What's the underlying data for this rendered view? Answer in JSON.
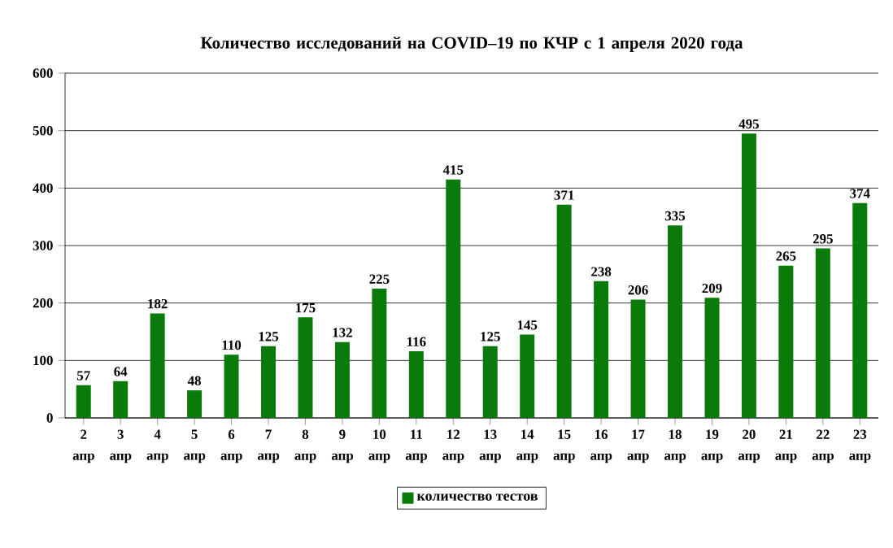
{
  "chart_data": {
    "type": "bar",
    "title": "Количество  исследований на COVID–19 по КЧР с 1 апреля 2020 года",
    "categories": [
      "2 апр",
      "3 апр",
      "4 апр",
      "5 апр",
      "6 апр",
      "7 апр",
      "8 апр",
      "9 апр",
      "10 апр",
      "11 апр",
      "12 апр",
      "13 апр",
      "14 апр",
      "15 апр",
      "16 апр",
      "17 апр",
      "18 апр",
      "19 апр",
      "20 апр",
      "21 апр",
      "22 апр",
      "23 апр"
    ],
    "series": [
      {
        "name": "количество тестов",
        "color": "#0a7a0a",
        "values": [
          57,
          64,
          182,
          48,
          110,
          125,
          175,
          132,
          225,
          116,
          415,
          125,
          145,
          371,
          238,
          206,
          335,
          209,
          495,
          265,
          295,
          374
        ]
      }
    ],
    "ylim": [
      0,
      600
    ],
    "yticks": [
      0,
      100,
      200,
      300,
      400,
      500,
      600
    ],
    "grid": "y",
    "legend": "bottom",
    "data_labels": true
  }
}
